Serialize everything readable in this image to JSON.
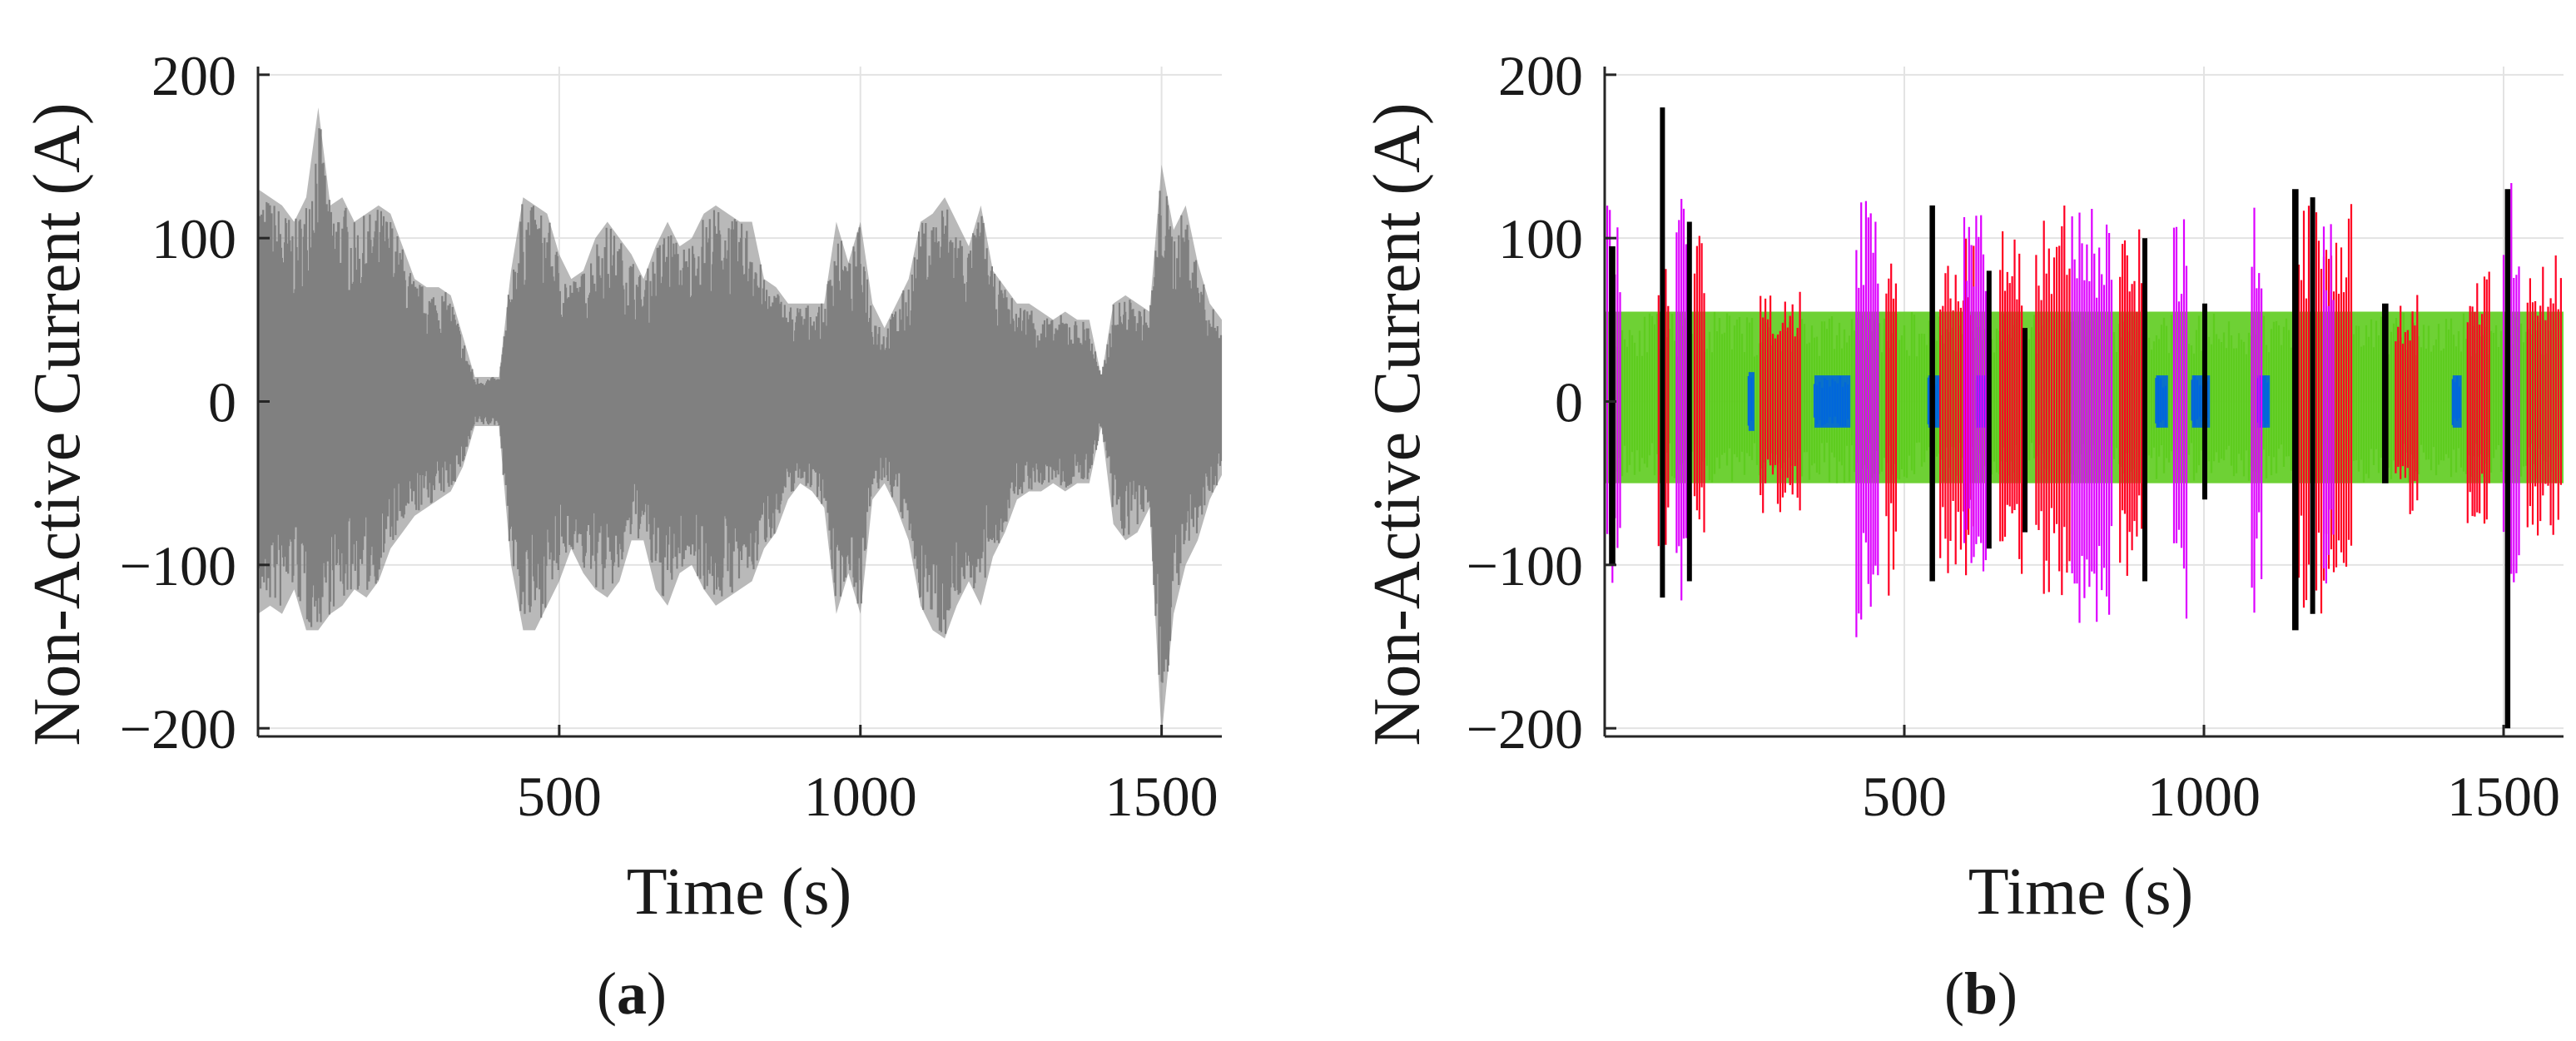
{
  "chart_data": [
    {
      "type": "line",
      "panel_label": "a",
      "title": "",
      "xlabel": "Time (s)",
      "ylabel": "Non-Active Current (A)",
      "xlim": [
        0,
        1600
      ],
      "ylim": [
        -205,
        205
      ],
      "xticks": [
        500,
        1000,
        1500
      ],
      "yticks": [
        200,
        100,
        0,
        -100,
        -200
      ],
      "xtick_labels": [
        "500",
        "1000",
        "1500"
      ],
      "ytick_labels": [
        "200",
        "100",
        "0",
        "−100",
        "−200"
      ],
      "grid": true,
      "series": [
        {
          "color": "#808080",
          "x": [
            0,
            20,
            40,
            60,
            80,
            100,
            120,
            140,
            160,
            180,
            200,
            220,
            240,
            260,
            280,
            300,
            320,
            340,
            360,
            380,
            400,
            420,
            440,
            460,
            480,
            500,
            520,
            540,
            560,
            580,
            600,
            620,
            640,
            660,
            680,
            700,
            720,
            740,
            760,
            780,
            800,
            820,
            840,
            860,
            880,
            900,
            920,
            940,
            960,
            980,
            1000,
            1020,
            1040,
            1060,
            1080,
            1100,
            1120,
            1140,
            1160,
            1180,
            1200,
            1220,
            1240,
            1260,
            1280,
            1300,
            1320,
            1340,
            1360,
            1380,
            1400,
            1420,
            1440,
            1460,
            1480,
            1500,
            1520,
            1540,
            1560,
            1580,
            1600
          ],
          "upper": [
            130,
            125,
            120,
            110,
            125,
            180,
            120,
            125,
            110,
            115,
            120,
            115,
            95,
            75,
            70,
            70,
            65,
            40,
            15,
            15,
            15,
            80,
            125,
            120,
            115,
            90,
            75,
            80,
            100,
            110,
            100,
            90,
            75,
            95,
            110,
            95,
            100,
            115,
            120,
            115,
            110,
            110,
            75,
            70,
            60,
            60,
            60,
            60,
            110,
            85,
            110,
            60,
            45,
            60,
            75,
            110,
            115,
            125,
            110,
            95,
            120,
            80,
            70,
            60,
            60,
            55,
            50,
            55,
            50,
            50,
            15,
            60,
            65,
            60,
            55,
            145,
            105,
            120,
            85,
            60,
            50
          ],
          "lower": [
            -130,
            -125,
            -130,
            -115,
            -140,
            -140,
            -130,
            -125,
            -115,
            -120,
            -110,
            -90,
            -80,
            -70,
            -65,
            -60,
            -55,
            -40,
            -15,
            -15,
            -15,
            -100,
            -140,
            -140,
            -125,
            -110,
            -90,
            -105,
            -115,
            -120,
            -110,
            -85,
            -85,
            -115,
            -125,
            -105,
            -100,
            -115,
            -125,
            -120,
            -115,
            -110,
            -90,
            -80,
            -60,
            -50,
            -55,
            -65,
            -130,
            -105,
            -130,
            -60,
            -50,
            -65,
            -85,
            -125,
            -140,
            -145,
            -125,
            -110,
            -125,
            -95,
            -80,
            -60,
            -55,
            -55,
            -50,
            -55,
            -50,
            -50,
            -15,
            -75,
            -85,
            -80,
            -65,
            -205,
            -130,
            -100,
            -85,
            -60,
            -45
          ]
        }
      ]
    },
    {
      "type": "line",
      "panel_label": "b",
      "title": "",
      "xlabel": "Time (s)",
      "ylabel": "Non-Active Current (A)",
      "xlim": [
        0,
        1600
      ],
      "ylim": [
        -205,
        205
      ],
      "xticks": [
        500,
        1000,
        1500
      ],
      "yticks": [
        200,
        100,
        0,
        -100,
        -200
      ],
      "xtick_labels": [
        "500",
        "1000",
        "1500"
      ],
      "ytick_labels": [
        "200",
        "100",
        "0",
        "−100",
        "−200"
      ],
      "grid": true,
      "segments": [
        {
          "color": "#5ecc1f",
          "x0": 0,
          "x1": 1600,
          "top": 55,
          "bottom": -50
        },
        {
          "color": "#0066dd",
          "x0": 240,
          "x1": 250,
          "top": 18,
          "bottom": -18
        },
        {
          "color": "#0066dd",
          "x0": 350,
          "x1": 410,
          "top": 16,
          "bottom": -16
        },
        {
          "color": "#0066dd",
          "x0": 540,
          "x1": 560,
          "top": 16,
          "bottom": -16
        },
        {
          "color": "#0066dd",
          "x0": 620,
          "x1": 640,
          "top": 16,
          "bottom": -16
        },
        {
          "color": "#0066dd",
          "x0": 920,
          "x1": 940,
          "top": 16,
          "bottom": -16
        },
        {
          "color": "#0066dd",
          "x0": 980,
          "x1": 1010,
          "top": 16,
          "bottom": -16
        },
        {
          "color": "#0066dd",
          "x0": 1090,
          "x1": 1110,
          "top": 16,
          "bottom": -16
        },
        {
          "color": "#0066dd",
          "x0": 1415,
          "x1": 1430,
          "top": 16,
          "bottom": -16
        },
        {
          "color": "#ff0022",
          "x0": 90,
          "x1": 110,
          "top": 100,
          "bottom": -110
        },
        {
          "color": "#ff0022",
          "x0": 150,
          "x1": 170,
          "top": 110,
          "bottom": -100
        },
        {
          "color": "#ff0022",
          "x0": 260,
          "x1": 330,
          "top": 75,
          "bottom": -70
        },
        {
          "color": "#ff0022",
          "x0": 470,
          "x1": 490,
          "top": 110,
          "bottom": -120
        },
        {
          "color": "#ff0022",
          "x0": 560,
          "x1": 620,
          "top": 100,
          "bottom": -110
        },
        {
          "color": "#ff0022",
          "x0": 660,
          "x1": 700,
          "top": 110,
          "bottom": -110
        },
        {
          "color": "#ff0022",
          "x0": 720,
          "x1": 780,
          "top": 120,
          "bottom": -125
        },
        {
          "color": "#ff0022",
          "x0": 860,
          "x1": 900,
          "top": 110,
          "bottom": -115
        },
        {
          "color": "#ff0022",
          "x0": 1150,
          "x1": 1250,
          "top": 125,
          "bottom": -130
        },
        {
          "color": "#ff0022",
          "x0": 1320,
          "x1": 1360,
          "top": 70,
          "bottom": -70
        },
        {
          "color": "#ff0022",
          "x0": 1440,
          "x1": 1480,
          "top": 80,
          "bottom": -80
        },
        {
          "color": "#ff0022",
          "x0": 1540,
          "x1": 1600,
          "top": 90,
          "bottom": -85
        },
        {
          "color": "#dd00ff",
          "x0": 0,
          "x1": 30,
          "top": 130,
          "bottom": -135
        },
        {
          "color": "#dd00ff",
          "x0": 120,
          "x1": 140,
          "top": 125,
          "bottom": -130
        },
        {
          "color": "#dd00ff",
          "x0": 420,
          "x1": 460,
          "top": 130,
          "bottom": -145
        },
        {
          "color": "#dd00ff",
          "x0": 600,
          "x1": 640,
          "top": 120,
          "bottom": -125
        },
        {
          "color": "#dd00ff",
          "x0": 780,
          "x1": 850,
          "top": 125,
          "bottom": -140
        },
        {
          "color": "#dd00ff",
          "x0": 950,
          "x1": 975,
          "top": 115,
          "bottom": -135
        },
        {
          "color": "#dd00ff",
          "x0": 1080,
          "x1": 1100,
          "top": 125,
          "bottom": -130
        },
        {
          "color": "#dd00ff",
          "x0": 1200,
          "x1": 1220,
          "top": 110,
          "bottom": -115
        },
        {
          "color": "#dd00ff",
          "x0": 1500,
          "x1": 1530,
          "top": 145,
          "bottom": -140
        },
        {
          "color": "#000000",
          "x0": 10,
          "x1": 20,
          "top": 95,
          "bottom": -100
        },
        {
          "color": "#000000",
          "x0": 95,
          "x1": 100,
          "top": 180,
          "bottom": -120
        },
        {
          "color": "#000000",
          "x0": 140,
          "x1": 145,
          "top": 110,
          "bottom": -110
        },
        {
          "color": "#000000",
          "x0": 545,
          "x1": 552,
          "top": 120,
          "bottom": -110
        },
        {
          "color": "#000000",
          "x0": 640,
          "x1": 645,
          "top": 80,
          "bottom": -90
        },
        {
          "color": "#000000",
          "x0": 700,
          "x1": 705,
          "top": 45,
          "bottom": -80
        },
        {
          "color": "#000000",
          "x0": 900,
          "x1": 905,
          "top": 100,
          "bottom": -110
        },
        {
          "color": "#000000",
          "x0": 1000,
          "x1": 1005,
          "top": 60,
          "bottom": -60
        },
        {
          "color": "#000000",
          "x0": 1150,
          "x1": 1160,
          "top": 130,
          "bottom": -140
        },
        {
          "color": "#000000",
          "x0": 1180,
          "x1": 1185,
          "top": 125,
          "bottom": -130
        },
        {
          "color": "#000000",
          "x0": 1300,
          "x1": 1310,
          "top": 60,
          "bottom": -50
        },
        {
          "color": "#000000",
          "x0": 1505,
          "x1": 1512,
          "top": 130,
          "bottom": -200
        }
      ]
    }
  ]
}
